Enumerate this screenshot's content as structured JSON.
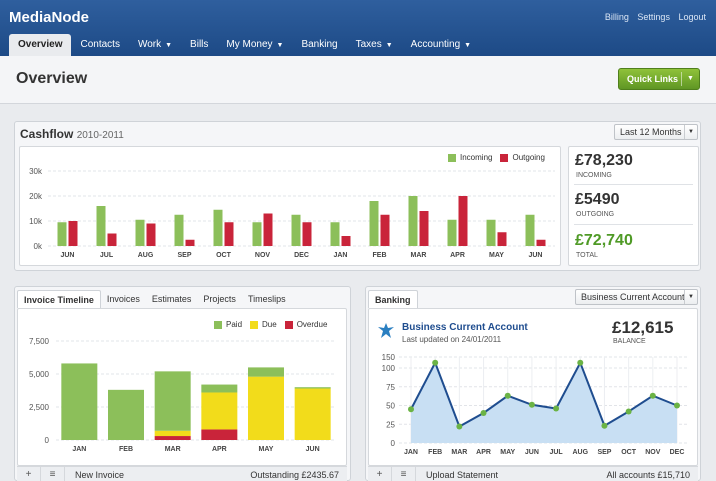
{
  "app": {
    "logo": "MediaNode"
  },
  "toplinks": [
    "Billing",
    "Settings",
    "Logout"
  ],
  "nav": [
    {
      "label": "Overview",
      "active": true,
      "caret": false
    },
    {
      "label": "Contacts",
      "caret": false
    },
    {
      "label": "Work",
      "caret": true
    },
    {
      "label": "Bills",
      "caret": false
    },
    {
      "label": "My Money",
      "caret": true
    },
    {
      "label": "Banking",
      "caret": false
    },
    {
      "label": "Taxes",
      "caret": true
    },
    {
      "label": "Accounting",
      "caret": true
    }
  ],
  "page": {
    "title": "Overview",
    "quick_links": "Quick Links"
  },
  "cashflow": {
    "title": "Cashflow",
    "subtitle": "2010-2011",
    "period": "Last 12 Months",
    "stats": [
      {
        "value": "£78,230",
        "label": "Incoming",
        "color": "#333333"
      },
      {
        "value": "£5490",
        "label": "Outgoing",
        "color": "#333333"
      },
      {
        "value": "£72,740",
        "label": "Total",
        "color": "#4f9a26"
      }
    ]
  },
  "invoices": {
    "tabs": [
      "Invoice Timeline",
      "Invoices",
      "Estimates",
      "Projects",
      "Timeslips"
    ],
    "footer": {
      "new_button": "New Invoice",
      "summary": "Outstanding £2435.67"
    }
  },
  "banking": {
    "tab": "Banking",
    "account_select": "Business Current Account",
    "account_name": "Business Current Account",
    "updated": "Last updated on 24/01/2011",
    "balance": "£12,615",
    "balance_label": "Balance",
    "footer": {
      "button": "Upload Statement",
      "summary": "All accounts £15,710"
    }
  },
  "chart_data": [
    {
      "type": "bar",
      "title": "Cashflow",
      "categories": [
        "JUN",
        "JUL",
        "AUG",
        "SEP",
        "OCT",
        "NOV",
        "DEC",
        "JAN",
        "FEB",
        "MAR",
        "APR",
        "MAY",
        "JUN"
      ],
      "series": [
        {
          "name": "Incoming",
          "color": "#8cbf5a",
          "values": [
            9.5,
            16,
            10.5,
            12.5,
            14.5,
            9.5,
            12.5,
            9.5,
            18,
            20,
            10.5,
            10.5,
            12.5
          ]
        },
        {
          "name": "Outgoing",
          "color": "#c9243a",
          "values": [
            10,
            5,
            9,
            2.5,
            9.5,
            13,
            9.5,
            4,
            12.5,
            14,
            20,
            5.5,
            2.5
          ]
        }
      ],
      "yticks": [
        "0k",
        "10k",
        "20k",
        "30k"
      ],
      "ylim": [
        0,
        30
      ],
      "grid": true,
      "legend": "top-right"
    },
    {
      "type": "bar",
      "title": "Invoice Timeline",
      "stacked": true,
      "categories": [
        "JAN",
        "FEB",
        "MAR",
        "APR",
        "MAY",
        "JUN"
      ],
      "series": [
        {
          "name": "Paid",
          "color": "#8cbf5a",
          "values": [
            5800,
            3800,
            4500,
            600,
            700,
            100
          ]
        },
        {
          "name": "Due",
          "color": "#f2dc1b",
          "values": [
            0,
            0,
            400,
            2800,
            4800,
            3900
          ]
        },
        {
          "name": "Overdue",
          "color": "#c9243a",
          "values": [
            0,
            0,
            300,
            800,
            0,
            0
          ]
        }
      ],
      "yticks": [
        "0",
        "2,500",
        "5,000",
        "7,500"
      ],
      "ylim": [
        0,
        7500
      ],
      "grid": true,
      "legend": "top-right"
    },
    {
      "type": "area",
      "title": "Banking",
      "categories": [
        "JAN",
        "FEB",
        "MAR",
        "APR",
        "MAY",
        "JUN",
        "JUL",
        "AUG",
        "SEP",
        "OCT",
        "NOV",
        "DEC"
      ],
      "values": [
        45,
        107,
        22,
        40,
        63,
        51,
        46,
        107,
        23,
        42,
        63,
        50
      ],
      "yticks": [
        "0",
        "25",
        "50",
        "75",
        "100",
        "150"
      ],
      "ylim": [
        0,
        150
      ],
      "grid": true,
      "line_color": "#1f4d8f",
      "fill_color": "#c8dff3",
      "marker_color": "#6bb345"
    }
  ]
}
